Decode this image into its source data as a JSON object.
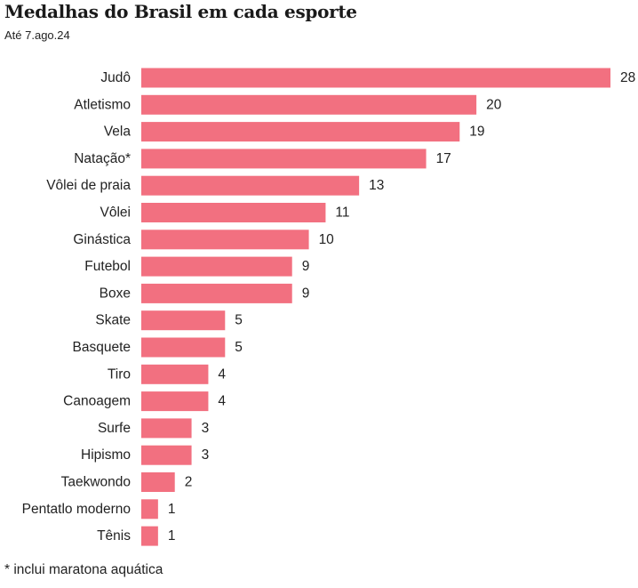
{
  "chart_data": {
    "type": "bar",
    "orientation": "horizontal",
    "title": "Medalhas do Brasil em cada esporte",
    "subtitle": "Até 7.ago.24",
    "footnote": "* inclui maratona aquática",
    "categories": [
      "Judô",
      "Atletismo",
      "Vela",
      "Natação*",
      "Vôlei de praia",
      "Vôlei",
      "Ginástica",
      "Futebol",
      "Boxe",
      "Skate",
      "Basquete",
      "Tiro",
      "Canoagem",
      "Surfe",
      "Hipismo",
      "Taekwondo",
      "Pentatlo moderno",
      "Tênis"
    ],
    "values": [
      28,
      20,
      19,
      17,
      13,
      11,
      10,
      9,
      9,
      5,
      5,
      4,
      4,
      3,
      3,
      2,
      1,
      1
    ],
    "xlim": [
      0,
      28
    ],
    "xlabel": "",
    "ylabel": "",
    "grid": false,
    "bar_color": "#f27080"
  }
}
